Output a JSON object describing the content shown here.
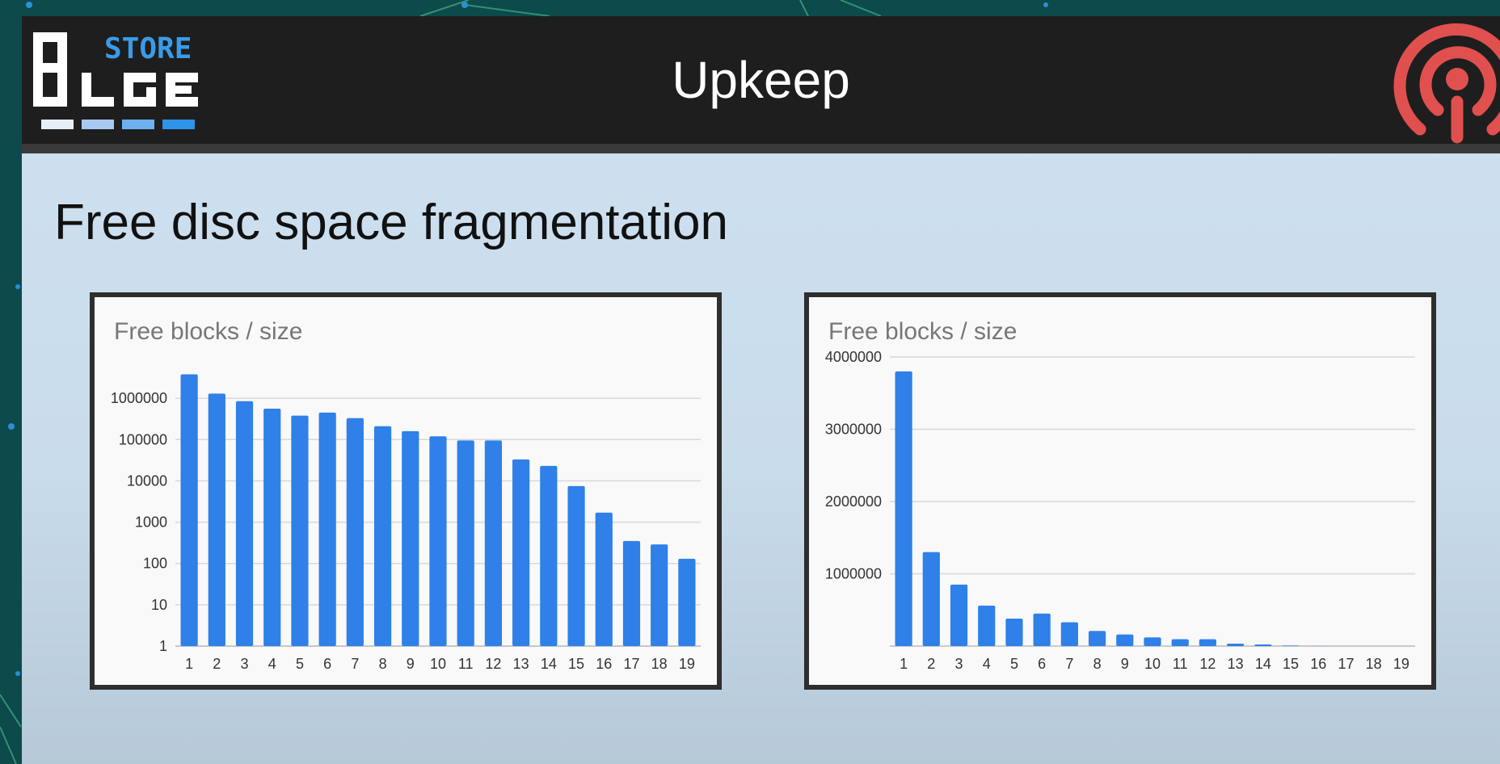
{
  "header": {
    "title": "Upkeep",
    "logo_text": "STORE"
  },
  "subtitle": "Free disc space fragmentation",
  "colors": {
    "bar": "#2f80e8",
    "header_bg": "#1e1e1e",
    "ceph_red": "#e0504e"
  },
  "chart_data": [
    {
      "type": "bar",
      "title": "Free blocks / size",
      "scale": "log",
      "categories": [
        "1",
        "2",
        "3",
        "4",
        "5",
        "6",
        "7",
        "8",
        "9",
        "10",
        "11",
        "12",
        "13",
        "14",
        "15",
        "16",
        "17",
        "18",
        "19"
      ],
      "values": [
        3800000,
        1300000,
        850000,
        560000,
        380000,
        450000,
        330000,
        210000,
        160000,
        120000,
        95000,
        95000,
        33000,
        23000,
        7500,
        1700,
        350,
        290,
        130
      ],
      "y_ticks": [
        "1",
        "10",
        "100",
        "1000",
        "10000",
        "100000",
        "1000000"
      ],
      "ylim": [
        1,
        10000000
      ],
      "grid": true
    },
    {
      "type": "bar",
      "title": "Free blocks / size",
      "scale": "linear",
      "categories": [
        "1",
        "2",
        "3",
        "4",
        "5",
        "6",
        "7",
        "8",
        "9",
        "10",
        "11",
        "12",
        "13",
        "14",
        "15",
        "16",
        "17",
        "18",
        "19"
      ],
      "values": [
        3800000,
        1300000,
        850000,
        560000,
        380000,
        450000,
        330000,
        210000,
        160000,
        120000,
        95000,
        95000,
        33000,
        23000,
        7500,
        1700,
        350,
        290,
        130
      ],
      "y_ticks": [
        "1000000",
        "2000000",
        "3000000",
        "4000000"
      ],
      "ylim": [
        0,
        4000000
      ],
      "grid": true
    }
  ]
}
